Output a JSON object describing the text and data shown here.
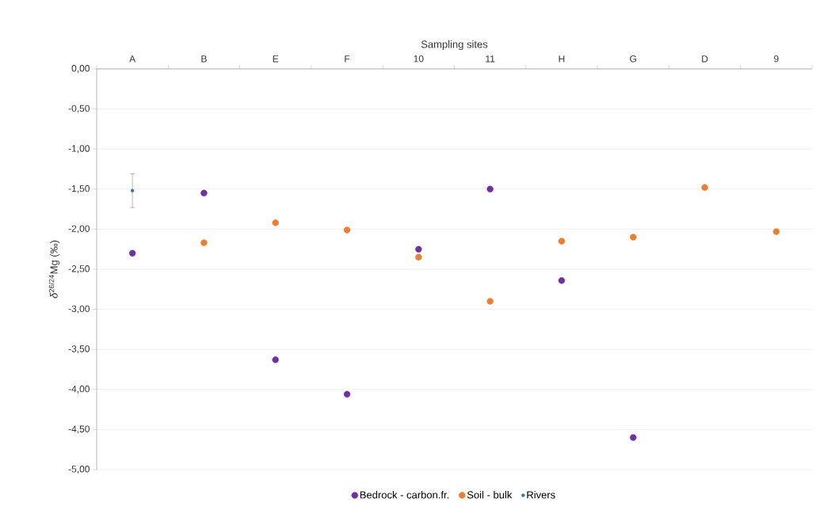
{
  "chart_data": {
    "type": "scatter",
    "xlabel": "Sampling sites",
    "ylabel": "*δ*$^{26/24}$Mg (‰)",
    "categories": [
      "A",
      "B",
      "E",
      "F",
      "10",
      "11",
      "H",
      "G",
      "D",
      "9"
    ],
    "ylim": [
      -5,
      0
    ],
    "yticks": [
      {
        "value": 0,
        "label": "0,00"
      },
      {
        "value": -0.5,
        "label": "-0,50"
      },
      {
        "value": -1,
        "label": "-1,00"
      },
      {
        "value": -1.5,
        "label": "-1,50"
      },
      {
        "value": -2,
        "label": "-2,00"
      },
      {
        "value": -2.5,
        "label": "-2,50"
      },
      {
        "value": -3,
        "label": "-3,00"
      },
      {
        "value": -3.5,
        "label": "-3,50"
      },
      {
        "value": -4,
        "label": "-4,00"
      },
      {
        "value": -4.5,
        "label": "-4,50"
      },
      {
        "value": -5,
        "label": "-5,00"
      }
    ],
    "series": [
      {
        "name": "Bedrock - carbon.fr.",
        "color": "#7030a0",
        "values": [
          -2.3,
          -1.55,
          -3.63,
          -4.06,
          -2.25,
          -1.5,
          -2.64,
          -4.6,
          null,
          null
        ]
      },
      {
        "name": "Soil - bulk",
        "color": "#ed7d31",
        "values": [
          null,
          -2.17,
          -1.92,
          -2.01,
          -2.35,
          -2.9,
          -2.15,
          -2.1,
          -1.48,
          -2.03
        ]
      },
      {
        "name": "Rivers",
        "color": "#2e75b6",
        "values": [
          -1.52,
          null,
          null,
          null,
          null,
          null,
          null,
          null,
          null,
          null
        ],
        "errors": [
          0.21,
          null,
          null,
          null,
          null,
          null,
          null,
          null,
          null,
          null
        ]
      }
    ],
    "grid": "y",
    "legend": "bottom",
    "marker": "circle"
  }
}
